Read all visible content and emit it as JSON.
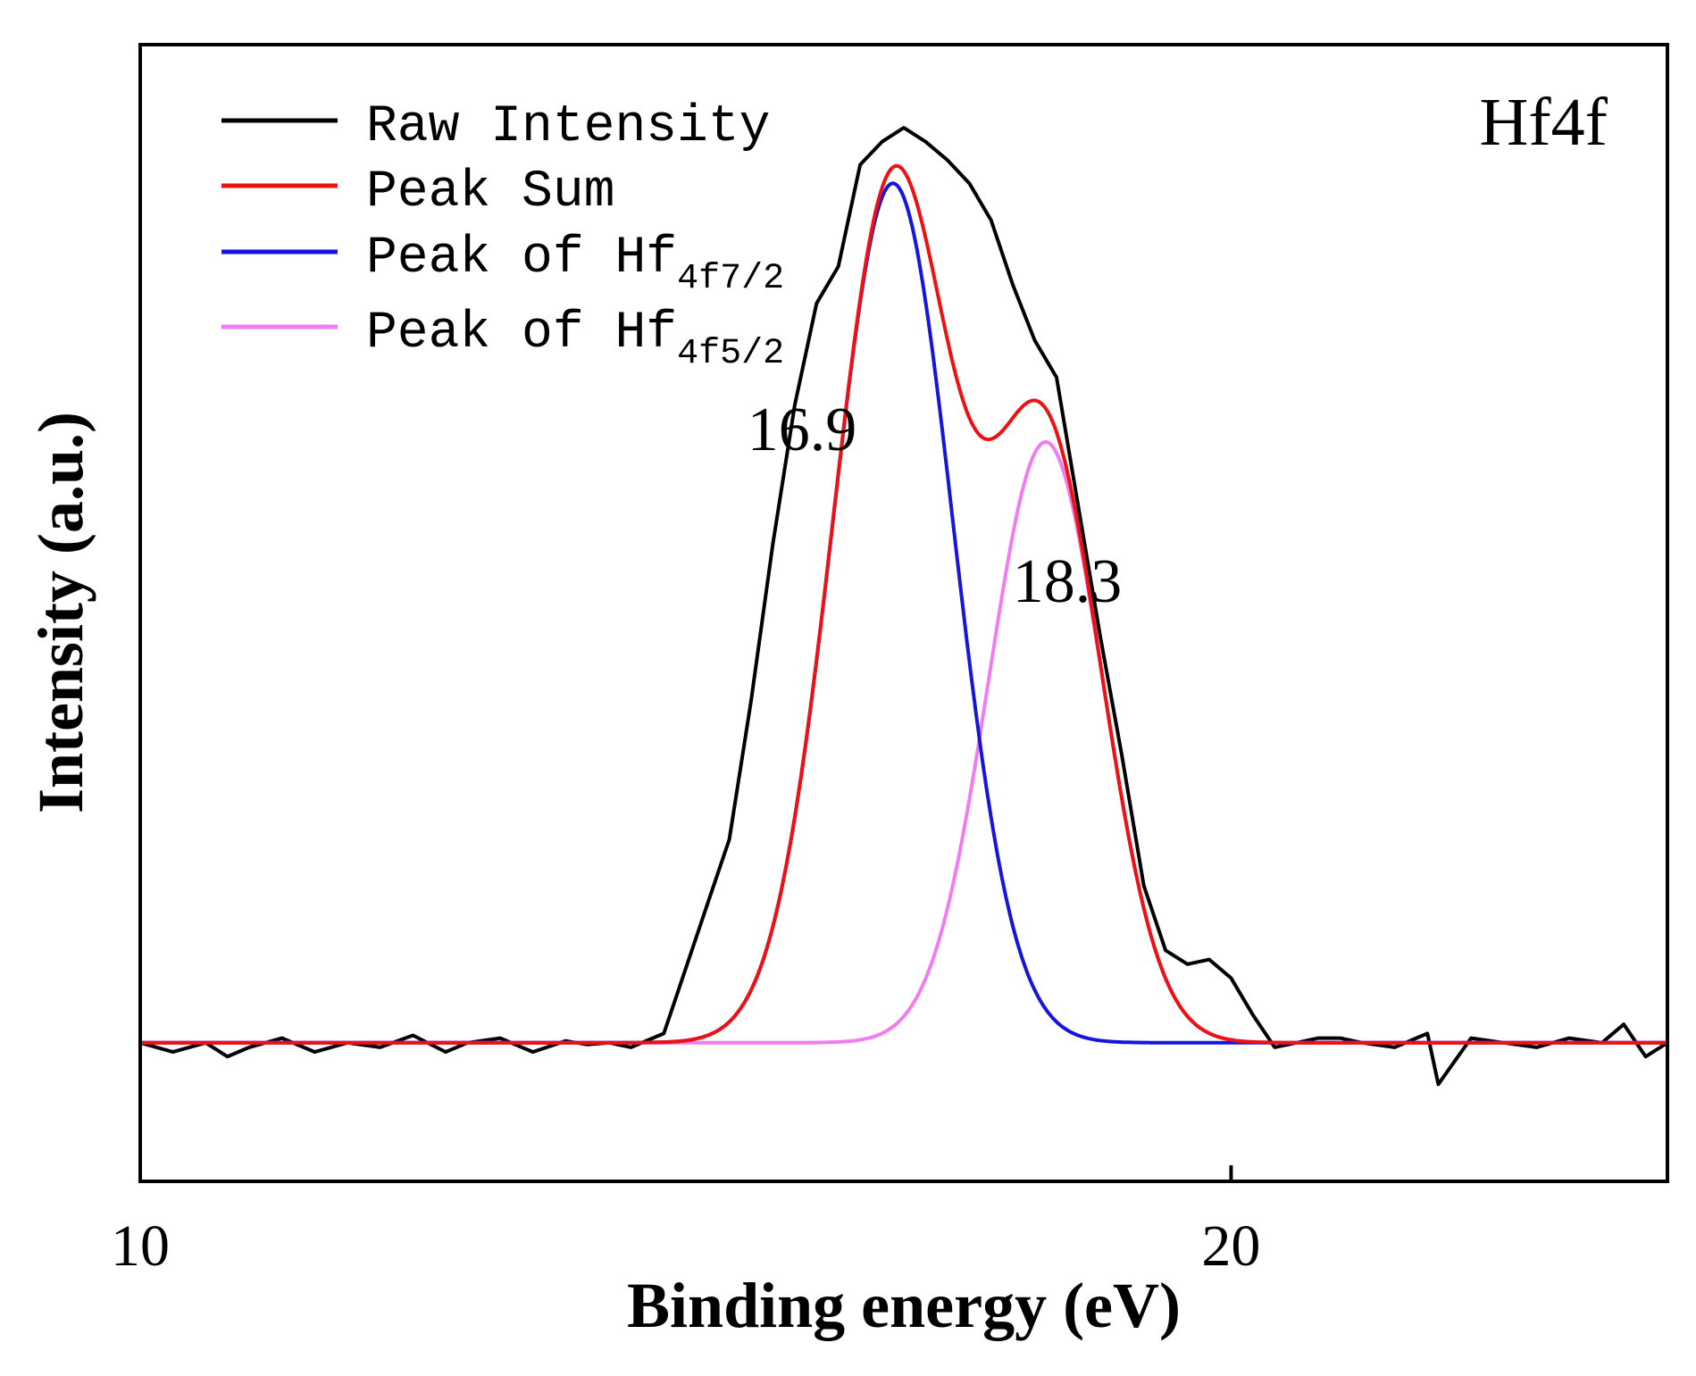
{
  "chart_data": {
    "type": "line",
    "title": "Hf4f",
    "xlabel": "Binding energy (eV)",
    "ylabel": "Intensity (a.u.)",
    "xlim": [
      10,
      24
    ],
    "ylim": [
      -0.15,
      1.08
    ],
    "x_ticks": [
      10,
      20
    ],
    "x_tick_labels": [
      "10",
      "20"
    ],
    "grid": false,
    "legend_position": "top-left",
    "series": [
      {
        "name": "Raw Intensity",
        "color": "#000000",
        "x": [
          10.0,
          10.3,
          10.6,
          10.8,
          11.0,
          11.3,
          11.6,
          11.9,
          12.2,
          12.5,
          12.8,
          13.0,
          13.3,
          13.6,
          13.9,
          14.1,
          14.3,
          14.5,
          14.8,
          15.0,
          15.2,
          15.4,
          15.6,
          15.8,
          16.0,
          16.2,
          16.4,
          16.6,
          16.8,
          17.0,
          17.2,
          17.4,
          17.6,
          17.8,
          18.0,
          18.2,
          18.4,
          18.6,
          18.8,
          19.0,
          19.2,
          19.4,
          19.6,
          19.8,
          20.0,
          20.2,
          20.4,
          20.6,
          20.8,
          21.0,
          21.2,
          21.5,
          21.8,
          21.9,
          22.2,
          22.5,
          22.8,
          23.1,
          23.4,
          23.6,
          23.8,
          24.0
        ],
        "y": [
          0.0,
          -0.01,
          0.0,
          -0.015,
          -0.005,
          0.005,
          -0.01,
          0.0,
          -0.005,
          0.008,
          -0.01,
          0.0,
          0.005,
          -0.01,
          0.002,
          -0.002,
          0.0,
          -0.005,
          0.01,
          0.08,
          0.15,
          0.22,
          0.37,
          0.54,
          0.69,
          0.8,
          0.84,
          0.95,
          0.975,
          0.99,
          0.975,
          0.955,
          0.93,
          0.89,
          0.82,
          0.76,
          0.72,
          0.58,
          0.44,
          0.31,
          0.17,
          0.1,
          0.085,
          0.09,
          0.07,
          0.03,
          -0.005,
          0.0,
          0.005,
          0.005,
          0.0,
          -0.005,
          0.01,
          -0.045,
          0.005,
          0.0,
          -0.005,
          0.005,
          0.0,
          0.02,
          -0.015,
          0.0
        ]
      },
      {
        "name": "Peak Sum",
        "color": "#ee1111",
        "model": "sum_of_gaussians",
        "peaks": [
          {
            "center": 16.9,
            "height": 0.93,
            "sigma": 0.55
          },
          {
            "center": 18.3,
            "height": 0.65,
            "sigma": 0.52
          }
        ]
      },
      {
        "name": "Peak of Hf",
        "subscript": "4f7/2",
        "color": "#1515dd",
        "model": "gaussian",
        "peaks": [
          {
            "center": 16.9,
            "height": 0.93,
            "sigma": 0.55
          }
        ]
      },
      {
        "name": "Peak of Hf",
        "subscript": "4f5/2",
        "color": "#f07cf0",
        "model": "gaussian",
        "peaks": [
          {
            "center": 18.3,
            "height": 0.65,
            "sigma": 0.52
          }
        ]
      }
    ],
    "annotations": [
      {
        "text": "16.9",
        "x": 16.9,
        "y": 0.93
      },
      {
        "text": "18.3",
        "x": 18.3,
        "y": 0.65
      }
    ]
  }
}
